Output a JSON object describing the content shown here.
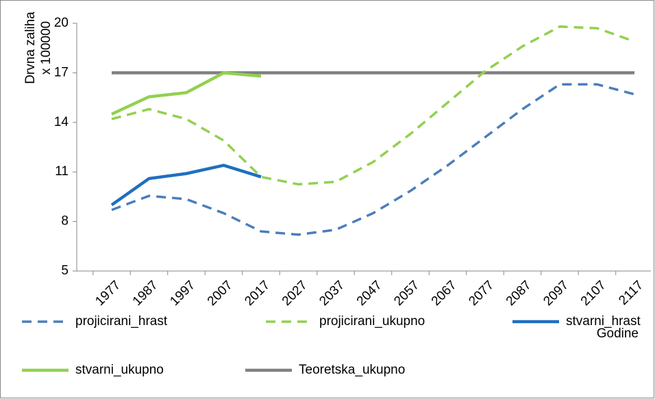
{
  "chart_data": {
    "type": "line",
    "ylabel": [
      "Drvna  zaliha",
      "x 100000"
    ],
    "xlabel": "Godine",
    "categories": [
      "1977",
      "1987",
      "1997",
      "2007",
      "2017",
      "2027",
      "2037",
      "2047",
      "2057",
      "2067",
      "2077",
      "2087",
      "2097",
      "2107",
      "2117"
    ],
    "ylim": [
      5,
      20
    ],
    "yticks": [
      5,
      8,
      11,
      14,
      17,
      20
    ],
    "series": [
      {
        "name": "projicirani_hrast",
        "color": "#4a7ebb",
        "dash": true,
        "values": [
          8.7,
          9.55,
          9.35,
          8.5,
          7.4,
          7.2,
          7.5,
          8.5,
          9.85,
          11.4,
          13.1,
          14.8,
          16.3,
          16.3,
          15.7
        ]
      },
      {
        "name": "projicirani_ukupno",
        "color": "#92d050",
        "dash": true,
        "values": [
          14.2,
          14.8,
          14.2,
          12.9,
          10.7,
          10.25,
          10.4,
          11.6,
          13.3,
          15.2,
          17.1,
          18.6,
          19.8,
          19.7,
          18.9
        ]
      },
      {
        "name": "stvarni_hrast",
        "color": "#1f6fbf",
        "dash": false,
        "values": [
          9.0,
          10.6,
          10.9,
          11.4,
          10.7,
          null,
          null,
          null,
          null,
          null,
          null,
          null,
          null,
          null,
          null
        ]
      },
      {
        "name": "stvarni_ukupno",
        "color": "#92d050",
        "dash": false,
        "values": [
          14.5,
          15.55,
          15.8,
          17.0,
          16.8,
          null,
          null,
          null,
          null,
          null,
          null,
          null,
          null,
          null,
          null
        ]
      },
      {
        "name": "Teoretska_ukupno",
        "color": "#808080",
        "dash": false,
        "values": [
          17,
          17,
          17,
          17,
          17,
          17,
          17,
          17,
          17,
          17,
          17,
          17,
          17,
          17,
          17
        ]
      }
    ]
  }
}
